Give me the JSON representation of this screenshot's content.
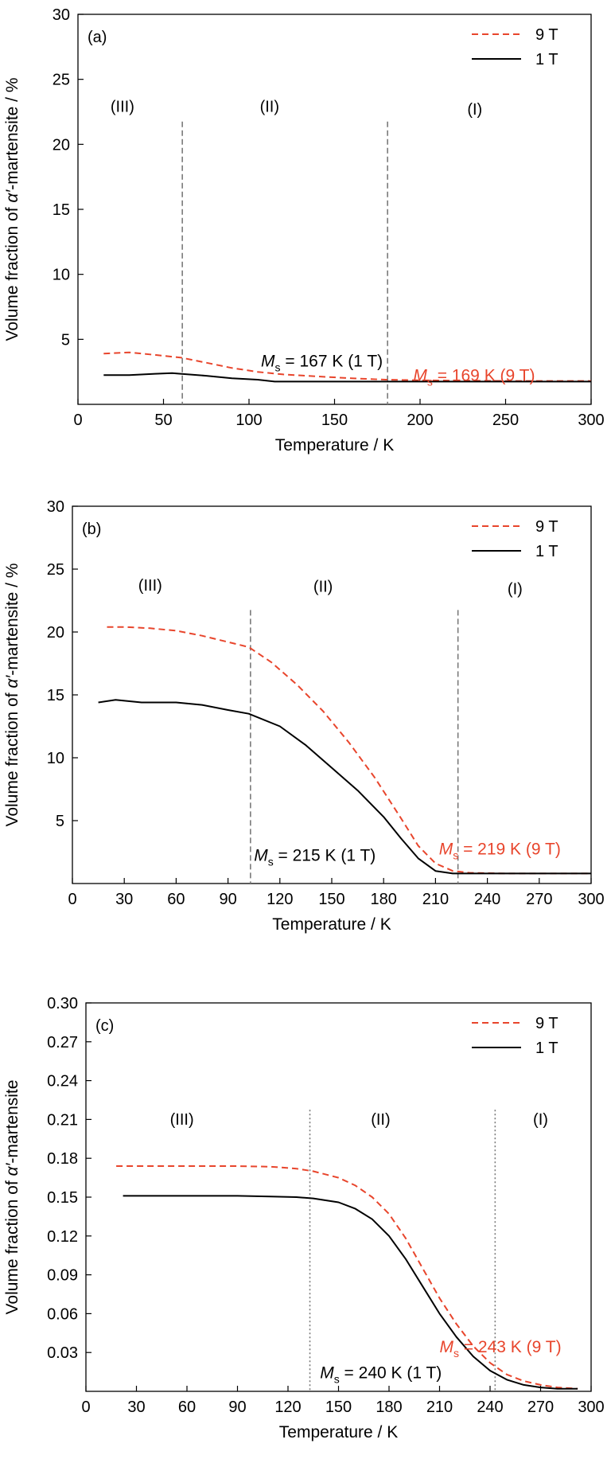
{
  "chart_data": [
    {
      "type": "line",
      "panel_label": "(a)",
      "xlabel": "Temperature / K",
      "ylabel_parts": [
        "Volume fraction of ",
        "α′",
        "-martensite / %"
      ],
      "xlim": [
        0,
        300
      ],
      "ylim": [
        0,
        30
      ],
      "xticks": [
        0,
        50,
        100,
        150,
        200,
        250,
        300
      ],
      "yticks": [
        5,
        10,
        15,
        20,
        25,
        30
      ],
      "grid": false,
      "legend_position": "top-right",
      "series": [
        {
          "name": "9 T",
          "color": "#e8452c",
          "style": "dashed",
          "x": [
            15,
            30,
            45,
            60,
            75,
            90,
            105,
            120,
            140,
            160,
            180,
            200,
            250,
            300
          ],
          "y": [
            3.9,
            4.0,
            3.8,
            3.6,
            3.2,
            2.8,
            2.5,
            2.3,
            2.15,
            2.0,
            1.9,
            1.85,
            1.8,
            1.8
          ]
        },
        {
          "name": "1 T",
          "color": "#000000",
          "style": "solid",
          "x": [
            15,
            30,
            45,
            55,
            60,
            75,
            90,
            105,
            115,
            130,
            150,
            200,
            250,
            300
          ],
          "y": [
            2.25,
            2.25,
            2.35,
            2.4,
            2.35,
            2.2,
            2.0,
            1.9,
            1.75,
            1.75,
            1.75,
            1.75,
            1.75,
            1.75
          ]
        }
      ],
      "vlines": [
        61,
        181
      ],
      "vline_style": "dashed",
      "regions": [
        {
          "text": "(III)",
          "x": 26,
          "y": 22.5
        },
        {
          "text": "(II)",
          "x": 112,
          "y": 22.5
        },
        {
          "text": "(I)",
          "x": 232,
          "y": 22.3
        }
      ],
      "annotations": [
        {
          "main": "M",
          "sub": "s",
          "rest": " = 167 K (1 T)",
          "color": "#000000",
          "x": 107,
          "y": 2.9
        },
        {
          "main": "M",
          "sub": "s",
          "rest": " = 169 K (9 T)",
          "color": "#e8452c",
          "x": 196,
          "y": 1.8
        }
      ]
    },
    {
      "type": "line",
      "panel_label": "(b)",
      "xlabel": "Temperature / K",
      "ylabel_parts": [
        "Volume fraction of ",
        "α′",
        "-martensite / %"
      ],
      "xlim": [
        0,
        300
      ],
      "ylim": [
        0,
        30
      ],
      "xticks": [
        0,
        30,
        60,
        90,
        120,
        150,
        180,
        210,
        240,
        270,
        300
      ],
      "yticks": [
        5,
        10,
        15,
        20,
        25,
        30
      ],
      "grid": false,
      "legend_position": "top-right",
      "series": [
        {
          "name": "9 T",
          "color": "#e8452c",
          "style": "dashed",
          "x": [
            20,
            30,
            45,
            60,
            75,
            90,
            102,
            115,
            130,
            145,
            160,
            175,
            190,
            200,
            210,
            220,
            230,
            250,
            300
          ],
          "y": [
            20.4,
            20.4,
            20.3,
            20.1,
            19.7,
            19.2,
            18.8,
            17.6,
            15.8,
            13.7,
            11.2,
            8.4,
            5.2,
            3.0,
            1.6,
            1.0,
            0.85,
            0.8,
            0.8
          ]
        },
        {
          "name": "1 T",
          "color": "#000000",
          "style": "solid",
          "x": [
            15,
            25,
            40,
            60,
            75,
            90,
            102,
            120,
            135,
            150,
            165,
            180,
            190,
            200,
            210,
            220,
            250,
            300
          ],
          "y": [
            14.4,
            14.6,
            14.4,
            14.4,
            14.2,
            13.8,
            13.5,
            12.5,
            11.0,
            9.2,
            7.4,
            5.3,
            3.6,
            2.0,
            1.0,
            0.8,
            0.8,
            0.8
          ]
        }
      ],
      "vlines": [
        103,
        223
      ],
      "vline_style": "dashed",
      "regions": [
        {
          "text": "(III)",
          "x": 45,
          "y": 23.3
        },
        {
          "text": "(II)",
          "x": 145,
          "y": 23.2
        },
        {
          "text": "(I)",
          "x": 256,
          "y": 23.0
        }
      ],
      "annotations": [
        {
          "main": "M",
          "sub": "s",
          "rest": " = 215 K (1 T)",
          "color": "#000000",
          "x": 105,
          "y": 1.8
        },
        {
          "main": "M",
          "sub": "s",
          "rest": " = 219 K (9 T)",
          "color": "#e8452c",
          "x": 212,
          "y": 2.3
        }
      ]
    },
    {
      "type": "line",
      "panel_label": "(c)",
      "xlabel": "Temperature / K",
      "ylabel_parts": [
        "Volume fraction of ",
        "α′",
        "-martensite"
      ],
      "xlim": [
        0,
        300
      ],
      "ylim": [
        0,
        0.3
      ],
      "xticks": [
        0,
        30,
        60,
        90,
        120,
        150,
        180,
        210,
        240,
        270,
        300
      ],
      "yticks": [
        0.03,
        0.06,
        0.09,
        0.12,
        0.15,
        0.18,
        0.21,
        0.24,
        0.27,
        0.3
      ],
      "ytick_labels": [
        "0.03",
        "0.06",
        "0.09",
        "0.12",
        "0.15",
        "0.18",
        "0.21",
        "0.24",
        "0.27",
        "0.30"
      ],
      "grid": false,
      "legend_position": "top-right",
      "series": [
        {
          "name": "9 T",
          "color": "#e8452c",
          "style": "dashed",
          "x": [
            18,
            40,
            60,
            90,
            110,
            125,
            135,
            150,
            160,
            170,
            180,
            190,
            200,
            210,
            220,
            230,
            240,
            250,
            260,
            270,
            280,
            292
          ],
          "y": [
            0.174,
            0.174,
            0.174,
            0.174,
            0.1735,
            0.172,
            0.17,
            0.165,
            0.159,
            0.15,
            0.137,
            0.118,
            0.095,
            0.072,
            0.052,
            0.035,
            0.022,
            0.013,
            0.008,
            0.005,
            0.003,
            0.002
          ]
        },
        {
          "name": "1 T",
          "color": "#000000",
          "style": "solid",
          "x": [
            22,
            40,
            60,
            90,
            110,
            125,
            135,
            150,
            160,
            170,
            180,
            190,
            200,
            210,
            220,
            230,
            240,
            250,
            260,
            270,
            280,
            292
          ],
          "y": [
            0.151,
            0.151,
            0.151,
            0.151,
            0.1505,
            0.15,
            0.149,
            0.146,
            0.141,
            0.133,
            0.12,
            0.102,
            0.081,
            0.06,
            0.042,
            0.027,
            0.016,
            0.009,
            0.005,
            0.003,
            0.002,
            0.002
          ]
        }
      ],
      "vlines": [
        133,
        243
      ],
      "vline_style": "dotted",
      "regions": [
        {
          "text": "(III)",
          "x": 57,
          "y": 0.206
        },
        {
          "text": "(II)",
          "x": 175,
          "y": 0.206
        },
        {
          "text": "(I)",
          "x": 270,
          "y": 0.206
        }
      ],
      "annotations": [
        {
          "main": "M",
          "sub": "s",
          "rest": " = 240 K (1 T)",
          "color": "#000000",
          "x": 139,
          "y": 0.01
        },
        {
          "main": "M",
          "sub": "s",
          "rest": " = 243 K (9 T)",
          "color": "#e8452c",
          "x": 210,
          "y": 0.03
        }
      ]
    }
  ]
}
